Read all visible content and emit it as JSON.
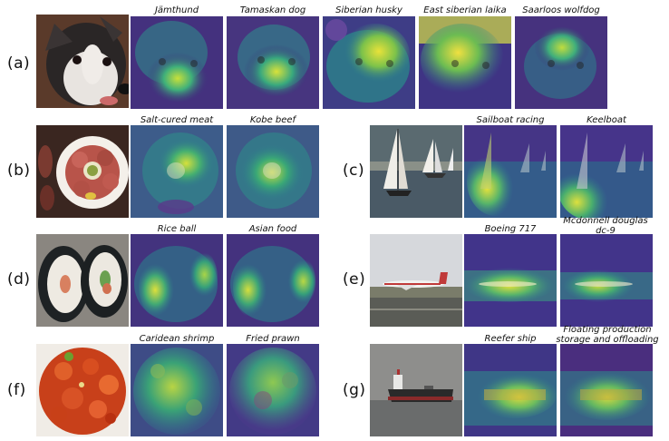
{
  "rows": [
    {
      "label": "(a)",
      "source": "husky photo",
      "captions": [
        "Jämthund",
        "Tamaskan dog",
        "Siberian husky",
        "East siberian laika",
        "Saarloos wolfdog"
      ]
    },
    {
      "label": "(b)",
      "source": "meat platter photo",
      "captions": [
        "Salt-cured meat",
        "Kobe beef"
      ]
    },
    {
      "label": "(c)",
      "source": "sailboats photo",
      "captions": [
        "Sailboat racing",
        "Keelboat"
      ]
    },
    {
      "label": "(d)",
      "source": "sushi roll photo",
      "captions": [
        "Rice ball",
        "Asian food"
      ]
    },
    {
      "label": "(e)",
      "source": "airplane photo",
      "captions": [
        "Boeing 717",
        "Mcdonnell douglas dc-9"
      ]
    },
    {
      "label": "(f)",
      "source": "shrimp dish photo",
      "captions": [
        "Caridean shrimp",
        "Fried prawn"
      ]
    },
    {
      "label": "(g)",
      "source": "cargo ship photo",
      "captions": [
        "Reefer ship",
        "Floating production storage and offloading"
      ]
    }
  ]
}
